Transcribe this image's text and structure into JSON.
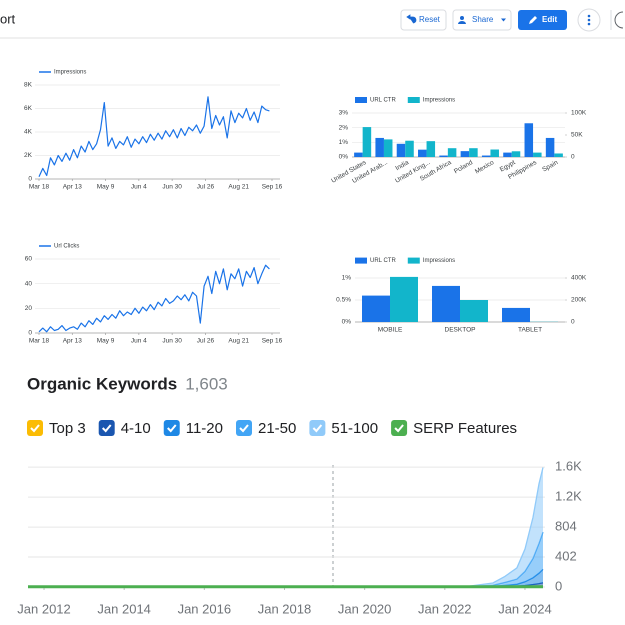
{
  "header": {
    "title": "ort",
    "buttons": [
      "Reset",
      "Share",
      "Edit"
    ]
  },
  "chart_data": [
    {
      "type": "line",
      "x": [
        0,
        3,
        6,
        9,
        12,
        15,
        18,
        21,
        24,
        27,
        30,
        33,
        36,
        39,
        42,
        45,
        48,
        51,
        54,
        57,
        60,
        63,
        66,
        69,
        72,
        75,
        78,
        81,
        84,
        87,
        90,
        93,
        96,
        99,
        102,
        105,
        108,
        111,
        114,
        117,
        120,
        123,
        126,
        129,
        132,
        135,
        138,
        141,
        144,
        147,
        150,
        153,
        156,
        159,
        162,
        165,
        168,
        171,
        174,
        177,
        180
      ],
      "series": [
        {
          "name": "Impressions",
          "color": "#1a73e8",
          "values": [
            200,
            900,
            300,
            1800,
            1200,
            2000,
            1500,
            2200,
            1600,
            2500,
            1800,
            2800,
            2300,
            3200,
            2500,
            3000,
            4200,
            6500,
            2800,
            3500,
            2600,
            3200,
            2900,
            3600,
            2700,
            3400,
            3000,
            3600,
            3100,
            3800,
            3300,
            3900,
            3400,
            4100,
            3600,
            4200,
            3500,
            4300,
            3700,
            4400,
            4100,
            4600,
            3900,
            4500,
            7000,
            4300,
            5400,
            4600,
            5300,
            3500,
            5800,
            4800,
            5600,
            5200,
            6000,
            5000,
            5700,
            4800,
            6200,
            5900,
            5800
          ]
        }
      ],
      "xlim": [
        0,
        182
      ],
      "xticks": [
        {
          "value": 0,
          "label": "Mar 18"
        },
        {
          "value": 26,
          "label": "Apr 13"
        },
        {
          "value": 52,
          "label": "May 9"
        },
        {
          "value": 78,
          "label": "Jun 4"
        },
        {
          "value": 104,
          "label": "Jun 30"
        },
        {
          "value": 130,
          "label": "Jul 26"
        },
        {
          "value": 156,
          "label": "Aug 21"
        },
        {
          "value": 182,
          "label": "Sep 16"
        }
      ],
      "ylim": [
        0,
        8000
      ],
      "yticks": [
        0,
        {
          "value": 2000,
          "label": "2K"
        },
        {
          "value": 4000,
          "label": "4K"
        },
        {
          "value": 6000,
          "label": "6K"
        },
        {
          "value": 8000,
          "label": "8K"
        }
      ],
      "grid": true
    },
    {
      "type": "bar",
      "categories": [
        "United States",
        "United Arab...",
        "India",
        "United King...",
        "South Africa",
        "Poland",
        "Mexico",
        "Egypt",
        "Philippines",
        "Spain"
      ],
      "series": [
        {
          "name": "URL CTR",
          "color": "#1a73e8",
          "values": [
            0.3,
            1.3,
            0.9,
            0.5,
            0.1,
            0.4,
            0.1,
            0.3,
            2.3,
            1.3
          ]
        },
        {
          "name": "Impressions",
          "color": "#12b5cb",
          "axis": "y2",
          "values": [
            68000,
            40000,
            37000,
            36000,
            20000,
            20000,
            17000,
            13000,
            10000,
            8000
          ]
        }
      ],
      "ylim": [
        0,
        3
      ],
      "yticks": [
        {
          "value": 0,
          "label": "0%"
        },
        {
          "value": 1,
          "label": "1%"
        },
        {
          "value": 2,
          "label": "2%"
        },
        {
          "value": 3,
          "label": "3%"
        }
      ],
      "y2lim": [
        0,
        100000
      ],
      "y2ticks": [
        0,
        {
          "value": 50000,
          "label": "50K"
        },
        {
          "value": 100000,
          "label": "100K"
        }
      ],
      "grid": true
    },
    {
      "type": "line",
      "x": [
        0,
        3,
        6,
        9,
        12,
        15,
        18,
        21,
        24,
        27,
        30,
        33,
        36,
        39,
        42,
        45,
        48,
        51,
        54,
        57,
        60,
        63,
        66,
        69,
        72,
        75,
        78,
        81,
        84,
        87,
        90,
        93,
        96,
        99,
        102,
        105,
        108,
        111,
        114,
        117,
        120,
        123,
        126,
        129,
        132,
        135,
        138,
        141,
        144,
        147,
        150,
        153,
        156,
        159,
        162,
        165,
        168,
        171,
        174,
        177,
        180
      ],
      "series": [
        {
          "name": "Url Clicks",
          "color": "#1a73e8",
          "values": [
            1,
            4,
            1,
            5,
            2,
            3,
            6,
            2,
            4,
            5,
            3,
            8,
            5,
            10,
            7,
            12,
            9,
            14,
            11,
            15,
            12,
            18,
            14,
            17,
            15,
            20,
            16,
            21,
            18,
            23,
            19,
            25,
            22,
            28,
            24,
            26,
            30,
            27,
            31,
            26,
            33,
            30,
            8,
            38,
            46,
            32,
            50,
            40,
            52,
            35,
            48,
            44,
            52,
            38,
            50,
            45,
            53,
            40,
            48,
            55,
            52
          ]
        }
      ],
      "xlim": [
        0,
        182
      ],
      "xticks": [
        {
          "value": 0,
          "label": "Mar 18"
        },
        {
          "value": 26,
          "label": "Apr 13"
        },
        {
          "value": 52,
          "label": "May 9"
        },
        {
          "value": 78,
          "label": "Jun 4"
        },
        {
          "value": 104,
          "label": "Jun 30"
        },
        {
          "value": 130,
          "label": "Jul 26"
        },
        {
          "value": 156,
          "label": "Aug 21"
        },
        {
          "value": 182,
          "label": "Sep 16"
        }
      ],
      "ylim": [
        0,
        60
      ],
      "yticks": [
        0,
        20,
        40,
        60
      ],
      "grid": true
    },
    {
      "type": "bar",
      "categories": [
        "MOBILE",
        "DESKTOP",
        "TABLET"
      ],
      "series": [
        {
          "name": "URL CTR",
          "color": "#1a73e8",
          "values": [
            0.6,
            0.82,
            0.32
          ]
        },
        {
          "name": "Impressions",
          "color": "#12b5cb",
          "axis": "y2",
          "values": [
            410000,
            200000,
            2000
          ]
        }
      ],
      "ylim": [
        0,
        1.1
      ],
      "yticks": [
        {
          "value": 0,
          "label": "0%"
        },
        {
          "value": 0.5,
          "label": "0.5%"
        },
        {
          "value": 1,
          "label": "1%"
        }
      ],
      "y2lim": [
        0,
        440000
      ],
      "y2ticks": [
        0,
        {
          "value": 200000,
          "label": "200K"
        },
        {
          "value": 400000,
          "label": "400K"
        }
      ],
      "grid": true
    },
    {
      "type": "area",
      "title": "Organic Keywords",
      "subtitle": "1,603",
      "stacked": true,
      "x": [
        2011.6,
        2013,
        2015,
        2017,
        2019,
        2021,
        2022.5,
        2023.2,
        2023.5,
        2023.8,
        2024.0,
        2024.2,
        2024.35,
        2024.45
      ],
      "series": [
        {
          "name": "Top 3",
          "color": "#fbbc04",
          "values": [
            0,
            0,
            0,
            0,
            0,
            0,
            0,
            1,
            2,
            3,
            5,
            8,
            10,
            12
          ]
        },
        {
          "name": "4-10",
          "color": "#1a56b0",
          "values": [
            0,
            0,
            0,
            0,
            0,
            0,
            0,
            2,
            5,
            8,
            15,
            25,
            35,
            45
          ]
        },
        {
          "name": "11-20",
          "color": "#1e88e5",
          "values": [
            0,
            0,
            0,
            0,
            0,
            0,
            0,
            5,
            15,
            25,
            50,
            90,
            140,
            180
          ]
        },
        {
          "name": "21-50",
          "color": "#42a5f5",
          "values": [
            0,
            0,
            0,
            0,
            0,
            0,
            1,
            15,
            40,
            70,
            140,
            260,
            400,
            500
          ]
        },
        {
          "name": "51-100",
          "color": "#90caf9",
          "values": [
            0,
            0,
            0,
            0,
            0,
            1,
            2,
            30,
            80,
            150,
            300,
            550,
            800,
            866
          ]
        },
        {
          "name": "SERP Features",
          "color": "#4caf50",
          "mark": "line",
          "values": [
            4,
            4,
            4,
            4,
            4,
            4,
            4,
            4,
            4,
            4,
            4,
            4,
            4,
            4
          ]
        }
      ],
      "xlim": [
        2011.6,
        2024.5
      ],
      "xticks": [
        {
          "value": 2012,
          "label": "Jan 2012"
        },
        {
          "value": 2014,
          "label": "Jan 2014"
        },
        {
          "value": 2016,
          "label": "Jan 2016"
        },
        {
          "value": 2018,
          "label": "Jan 2018"
        },
        {
          "value": 2020,
          "label": "Jan 2020"
        },
        {
          "value": 2022,
          "label": "Jan 2022"
        },
        {
          "value": 2024,
          "label": "Jan 2024"
        }
      ],
      "ylim": [
        0,
        1650
      ],
      "yticks": [
        0,
        402,
        804,
        {
          "value": 1206,
          "label": "1.2K"
        },
        {
          "value": 1608,
          "label": "1.6K"
        }
      ],
      "grid": true
    }
  ]
}
